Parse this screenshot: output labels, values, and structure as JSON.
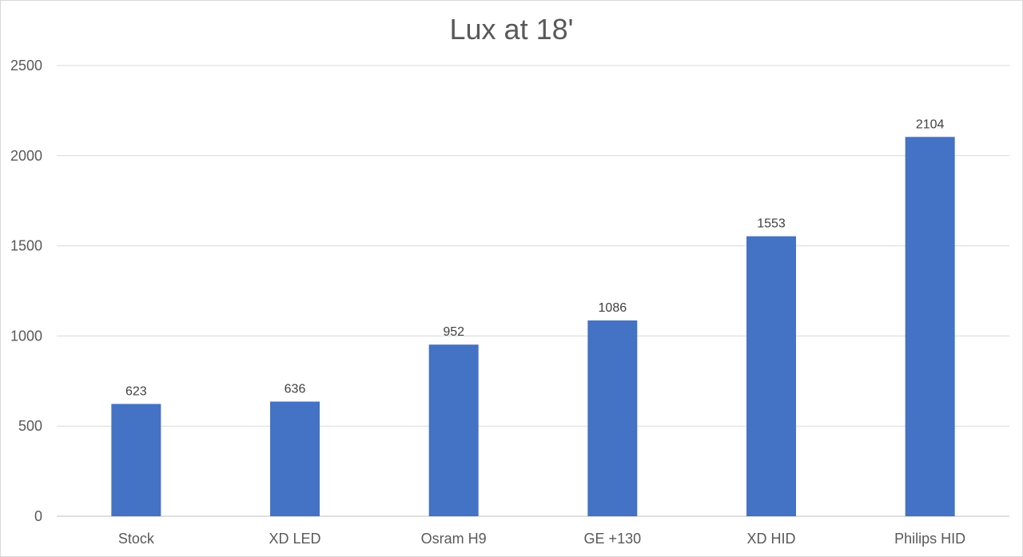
{
  "chart_data": {
    "type": "bar",
    "title": "Lux at 18'",
    "xlabel": "",
    "ylabel": "",
    "categories": [
      "Stock",
      "XD LED",
      "Osram H9",
      "GE +130",
      "XD HID",
      "Philips HID"
    ],
    "values": [
      623,
      636,
      952,
      1086,
      1553,
      2104
    ],
    "data_labels": [
      "623",
      "636",
      "952",
      "1086",
      "1553",
      "2104"
    ],
    "ylim": [
      0,
      2500
    ],
    "y_ticks": [
      0,
      500,
      1000,
      1500,
      2000,
      2500
    ],
    "y_tick_labels": [
      "0",
      "500",
      "1000",
      "1500",
      "2000",
      "2500"
    ],
    "grid": true,
    "legend": "none",
    "colors": {
      "bar": "#4472c4"
    }
  }
}
